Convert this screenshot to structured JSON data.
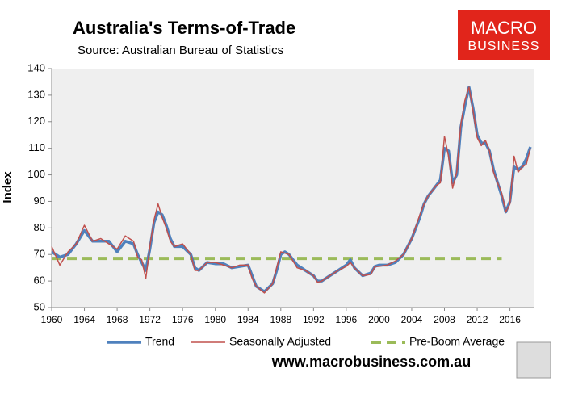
{
  "chart_data": {
    "type": "line",
    "title": "Australia's Terms-of-Trade",
    "subtitle": "Source: Australian Bureau of Statistics",
    "y_label": "Index",
    "logo": {
      "line1": "MACRO",
      "line2": "BUSINESS"
    },
    "website": "www.macrobusiness.com.au",
    "x": [
      1960,
      1961,
      1962,
      1963,
      1964,
      1965,
      1966,
      1967,
      1968,
      1969,
      1970,
      1970.5,
      1971,
      1971.5,
      1972,
      1972.5,
      1973,
      1973.5,
      1974,
      1974.5,
      1975,
      1976,
      1977,
      1977.5,
      1978,
      1979,
      1980,
      1981,
      1982,
      1983,
      1984,
      1984.5,
      1985,
      1986,
      1987,
      1987.5,
      1988,
      1988.5,
      1989,
      1990,
      1991,
      1992,
      1992.5,
      1993,
      1994,
      1995,
      1996,
      1996.5,
      1997,
      1998,
      1999,
      1999.5,
      2000,
      2001,
      2002,
      2003,
      2004,
      2005,
      2005.5,
      2006,
      2007,
      2007.5,
      2008,
      2008.5,
      2009,
      2009.5,
      2010,
      2010.5,
      2011,
      2011.5,
      2012,
      2012.5,
      2013,
      2013.5,
      2014,
      2015,
      2015.5,
      2016,
      2016.5,
      2017,
      2017.5,
      2018,
      2018.5
    ],
    "series": [
      {
        "name": "Trend",
        "color": "#4f81bd",
        "width": 3.5,
        "values": [
          71,
          69,
          70,
          74,
          79,
          75,
          75,
          75,
          71,
          75,
          74,
          70,
          67,
          64,
          72,
          82,
          86,
          85,
          81,
          76,
          73,
          73,
          70,
          65,
          64,
          67,
          66.5,
          66.5,
          65,
          65.5,
          66,
          62,
          58,
          56,
          59,
          64,
          70,
          71,
          70,
          66,
          64,
          62,
          60,
          60,
          62,
          64,
          66,
          68,
          65,
          62,
          63,
          65.5,
          66,
          66,
          67,
          70,
          76,
          84,
          89,
          92,
          96,
          98,
          110,
          109,
          97,
          100,
          118,
          126,
          133,
          125,
          115,
          112,
          112,
          109,
          102,
          92,
          86,
          90,
          103,
          102,
          103,
          106,
          110.5
        ]
      },
      {
        "name": "Seasonally Adjusted",
        "color": "#c0504d",
        "width": 1.5,
        "values": [
          73,
          66,
          71,
          74,
          81,
          75,
          76,
          74,
          72,
          77,
          75,
          69,
          68,
          61,
          73,
          83,
          89,
          84,
          80,
          75,
          73,
          74,
          70,
          64,
          64,
          67,
          67,
          66,
          65,
          66,
          66,
          61,
          58,
          55.5,
          59,
          65,
          71,
          70.5,
          70,
          65,
          64,
          62,
          59.5,
          60,
          62,
          64,
          65.5,
          67,
          65,
          62,
          62.5,
          65.5,
          65.5,
          66,
          67.5,
          70,
          76,
          85,
          89,
          92,
          96,
          97,
          114.5,
          107,
          95,
          101,
          119,
          128,
          133,
          124,
          114,
          111,
          113,
          109,
          101,
          93,
          86,
          89,
          107,
          101,
          103,
          104,
          110
        ]
      }
    ],
    "average_line": {
      "name": "Pre-Boom Average",
      "color": "#9bbb59",
      "value": 68.5,
      "x_range": [
        1960,
        2015
      ]
    },
    "xlim": [
      1960,
      2019
    ],
    "xticks": [
      1960,
      1964,
      1968,
      1972,
      1976,
      1980,
      1984,
      1988,
      1992,
      1996,
      2000,
      2004,
      2008,
      2012,
      2016
    ],
    "ylim": [
      50,
      140
    ],
    "yticks": [
      50,
      60,
      70,
      80,
      90,
      100,
      110,
      120,
      130,
      140
    ]
  }
}
